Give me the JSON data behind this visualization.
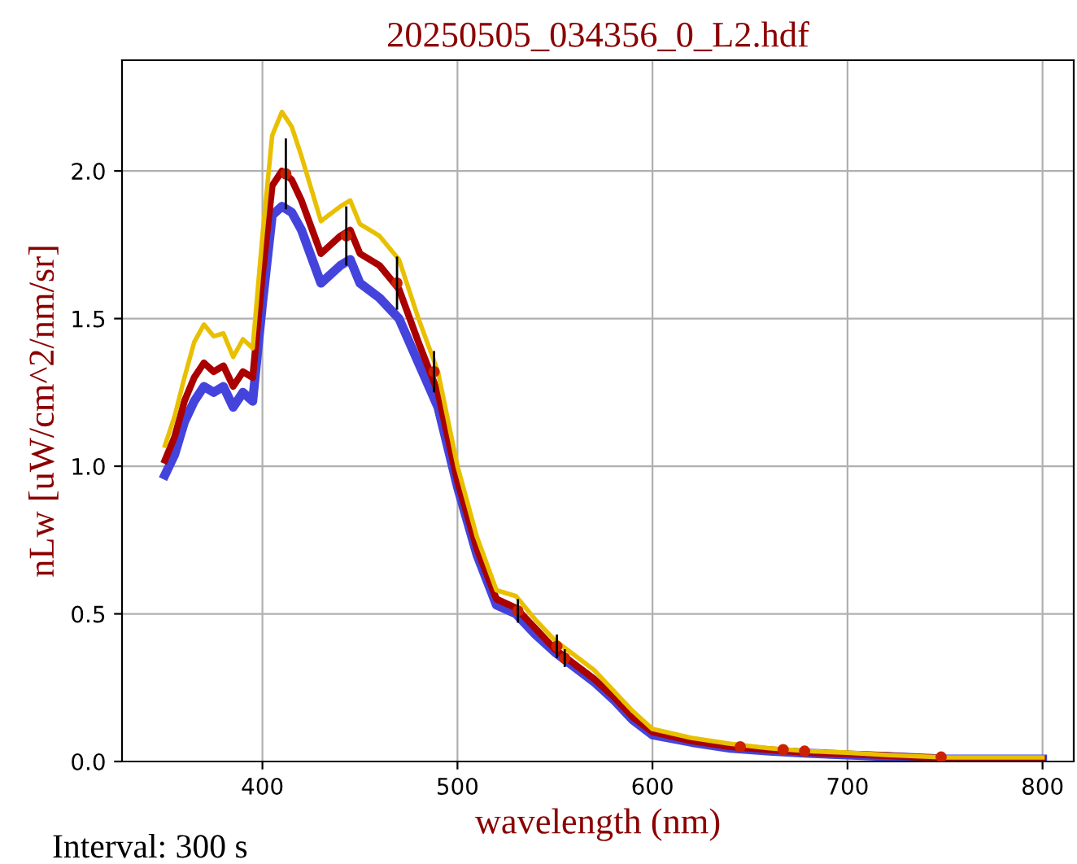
{
  "chart_data": {
    "type": "line",
    "title": "20250505_034356_0_L2.hdf",
    "xlabel": "wavelength (nm)",
    "ylabel": "nLw [uW/cm^2/nm/sr]",
    "annotations": [
      "Interval: 300 s"
    ],
    "x": [
      350,
      355,
      360,
      365,
      370,
      375,
      380,
      385,
      390,
      395,
      400,
      405,
      410,
      415,
      420,
      430,
      440,
      445,
      450,
      460,
      470,
      480,
      490,
      500,
      510,
      520,
      530,
      540,
      550,
      560,
      570,
      580,
      590,
      600,
      620,
      640,
      660,
      680,
      700,
      720,
      750,
      800
    ],
    "series": [
      {
        "color": "#4444dd",
        "values": [
          0.97,
          1.04,
          1.15,
          1.22,
          1.27,
          1.25,
          1.27,
          1.2,
          1.25,
          1.22,
          1.55,
          1.85,
          1.88,
          1.86,
          1.8,
          1.62,
          1.68,
          1.7,
          1.62,
          1.57,
          1.5,
          1.35,
          1.2,
          0.93,
          0.7,
          0.53,
          0.5,
          0.43,
          0.37,
          0.32,
          0.27,
          0.21,
          0.14,
          0.09,
          0.065,
          0.045,
          0.035,
          0.028,
          0.022,
          0.017,
          0.008,
          0.008
        ]
      },
      {
        "color": "#aa0000",
        "values": [
          1.02,
          1.1,
          1.22,
          1.3,
          1.35,
          1.32,
          1.34,
          1.27,
          1.32,
          1.3,
          1.65,
          1.95,
          2.0,
          1.97,
          1.9,
          1.72,
          1.78,
          1.8,
          1.72,
          1.68,
          1.6,
          1.42,
          1.25,
          0.95,
          0.72,
          0.55,
          0.52,
          0.45,
          0.38,
          0.33,
          0.28,
          0.22,
          0.15,
          0.1,
          0.07,
          0.05,
          0.04,
          0.03,
          0.025,
          0.02,
          0.01,
          0.01
        ]
      },
      {
        "color": "#e8c000",
        "values": [
          1.07,
          1.17,
          1.3,
          1.42,
          1.48,
          1.44,
          1.45,
          1.37,
          1.43,
          1.4,
          1.78,
          2.12,
          2.2,
          2.15,
          2.05,
          1.83,
          1.88,
          1.9,
          1.82,
          1.78,
          1.7,
          1.5,
          1.32,
          1.0,
          0.76,
          0.58,
          0.56,
          0.48,
          0.41,
          0.36,
          0.31,
          0.24,
          0.17,
          0.11,
          0.08,
          0.06,
          0.045,
          0.035,
          0.03,
          0.022,
          0.014,
          0.014
        ]
      },
      {
        "type": "scatter",
        "color": "#cc2200",
        "x": [
          412,
          443,
          469,
          488,
          531,
          551,
          555,
          645,
          667,
          678,
          748
        ],
        "values": [
          1.99,
          1.78,
          1.62,
          1.32,
          0.51,
          0.39,
          0.35,
          0.05,
          0.04,
          0.035,
          0.015
        ],
        "errors": [
          0.12,
          0.1,
          0.09,
          0.07,
          0.04,
          0.04,
          0.03,
          null,
          null,
          null,
          null
        ]
      }
    ],
    "xlim": [
      328,
      816
    ],
    "ylim": [
      0,
      2.375
    ],
    "xticks": [
      400,
      500,
      600,
      700,
      800
    ],
    "yticks": [
      {
        "value": 0,
        "label": "0.0"
      },
      0.5,
      {
        "value": 1,
        "label": "1.0"
      },
      1.5,
      {
        "value": 2,
        "label": "2.0"
      }
    ],
    "grid": true
  }
}
